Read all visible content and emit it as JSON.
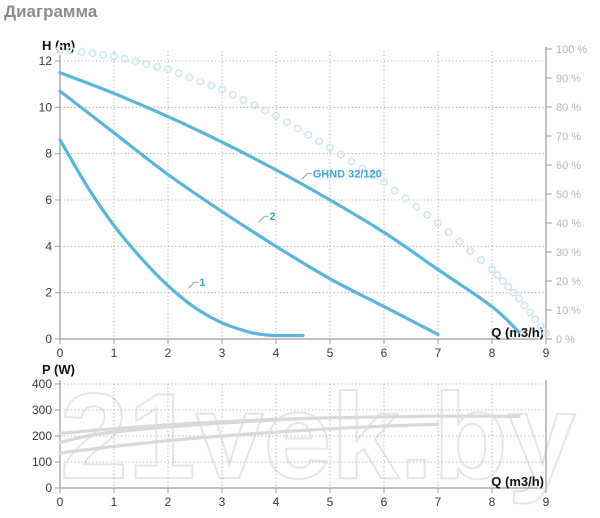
{
  "page": {
    "title": "Диаграмма",
    "watermark": "21vek.by"
  },
  "colors": {
    "curve": "#5ab4dc",
    "efficiency": "#cfe7f2",
    "power": "#d9d9d9",
    "grid": "#9a9a9a",
    "frame": "#9a9a9a",
    "tick_text": "#3a3a3a",
    "percent_text": "#b5b5b5",
    "curve_label": "#3ca6d4"
  },
  "chart_data": [
    {
      "type": "line",
      "xlabel": "Q (m3/h)",
      "ylabel": "H (m)",
      "xlim": [
        0,
        9
      ],
      "ylim": [
        0,
        12
      ],
      "x_ticks": [
        "0",
        "1",
        "2",
        "3",
        "4",
        "5",
        "6",
        "7",
        "8",
        "9"
      ],
      "y_ticks": [
        "0",
        "2",
        "4",
        "6",
        "8",
        "10",
        "12"
      ],
      "y2_label_ticks": [
        "0 %",
        "10 %",
        "20 %",
        "30 %",
        "40 %",
        "50 %",
        "60 %",
        "70 %",
        "80 %",
        "90 %",
        "100 %"
      ],
      "grid": "dashed",
      "series": [
        {
          "name": "1",
          "style": "solid",
          "x": [
            0,
            0.5,
            1,
            1.5,
            2,
            2.5,
            3,
            3.5,
            3.8,
            4.0,
            4.5
          ],
          "y": [
            8.6,
            6.6,
            4.9,
            3.5,
            2.3,
            1.35,
            0.7,
            0.3,
            0.18,
            0.15,
            0.15
          ]
        },
        {
          "name": "2",
          "style": "solid",
          "x": [
            0,
            1,
            2,
            3,
            4,
            5,
            6,
            7
          ],
          "y": [
            10.7,
            8.9,
            7.1,
            5.5,
            4.0,
            2.6,
            1.4,
            0.2
          ]
        },
        {
          "name": "GHND 32/120",
          "style": "solid",
          "x": [
            0,
            1,
            2,
            3,
            4,
            5,
            6,
            7,
            8,
            8.5
          ],
          "y": [
            11.5,
            10.6,
            9.6,
            8.5,
            7.3,
            6.0,
            4.6,
            3.0,
            1.4,
            0.3
          ]
        },
        {
          "name": "",
          "style": "dotted",
          "axis": "secondary",
          "x": [
            0,
            1,
            2,
            3,
            4,
            5,
            6,
            7,
            8,
            8.5,
            9
          ],
          "y": [
            100,
            97.5,
            93,
            86,
            77,
            66,
            54,
            40,
            24,
            14,
            2
          ]
        }
      ],
      "curve_labels": [
        {
          "text": "1",
          "x": 2.45,
          "y": 2.45
        },
        {
          "text": "2",
          "x": 3.75,
          "y": 5.3
        },
        {
          "text": "GHND 32/120",
          "x": 4.55,
          "y": 7.15
        }
      ]
    },
    {
      "type": "line",
      "xlabel": "Q (m3/h)",
      "ylabel": "P (W)",
      "xlim": [
        0,
        9
      ],
      "ylim": [
        0,
        400
      ],
      "x_ticks": [
        "0",
        "1",
        "2",
        "3",
        "4",
        "5",
        "6",
        "7",
        "8",
        "9"
      ],
      "y_ticks": [
        "0",
        "100",
        "200",
        "300",
        "400"
      ],
      "grid": "dashed",
      "series": [
        {
          "name": "1",
          "x": [
            0,
            0.5,
            1,
            2,
            3,
            4,
            4.5
          ],
          "y": [
            175,
            200,
            215,
            235,
            250,
            262,
            268
          ]
        },
        {
          "name": "2",
          "x": [
            0,
            1,
            2,
            3,
            4,
            5,
            6,
            7
          ],
          "y": [
            135,
            160,
            182,
            200,
            215,
            228,
            238,
            245
          ]
        },
        {
          "name": "GHND 32/120",
          "x": [
            0,
            1,
            2,
            3,
            4,
            5,
            6,
            7,
            8,
            8.5
          ],
          "y": [
            210,
            228,
            243,
            255,
            264,
            270,
            274,
            276,
            276,
            275
          ]
        }
      ]
    }
  ]
}
